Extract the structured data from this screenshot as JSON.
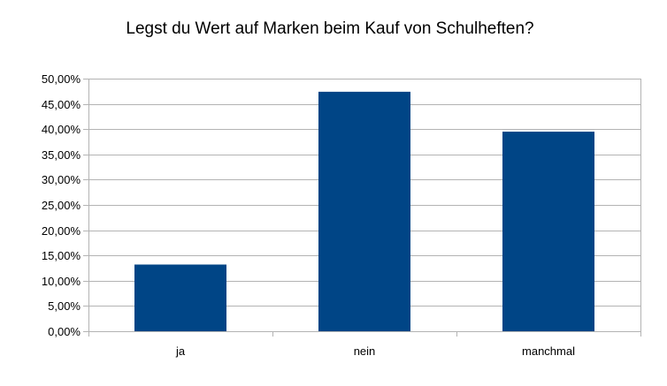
{
  "chart_data": {
    "type": "bar",
    "title": "Legst du Wert auf Marken beim Kauf von Schulheften?",
    "xlabel": "",
    "ylabel": "",
    "categories": [
      "ja",
      "nein",
      "manchmal"
    ],
    "values": [
      13.2,
      47.4,
      39.5
    ],
    "ylim": [
      0,
      50
    ],
    "yticks": [
      "0,00%",
      "5,00%",
      "10,00%",
      "15,00%",
      "20,00%",
      "25,00%",
      "30,00%",
      "35,00%",
      "40,00%",
      "45,00%",
      "50,00%"
    ],
    "grid": true,
    "legend": "none",
    "bar_color": "#004586",
    "grid_color": "#b3b3b3",
    "axis_color": "#b3b3b3"
  }
}
